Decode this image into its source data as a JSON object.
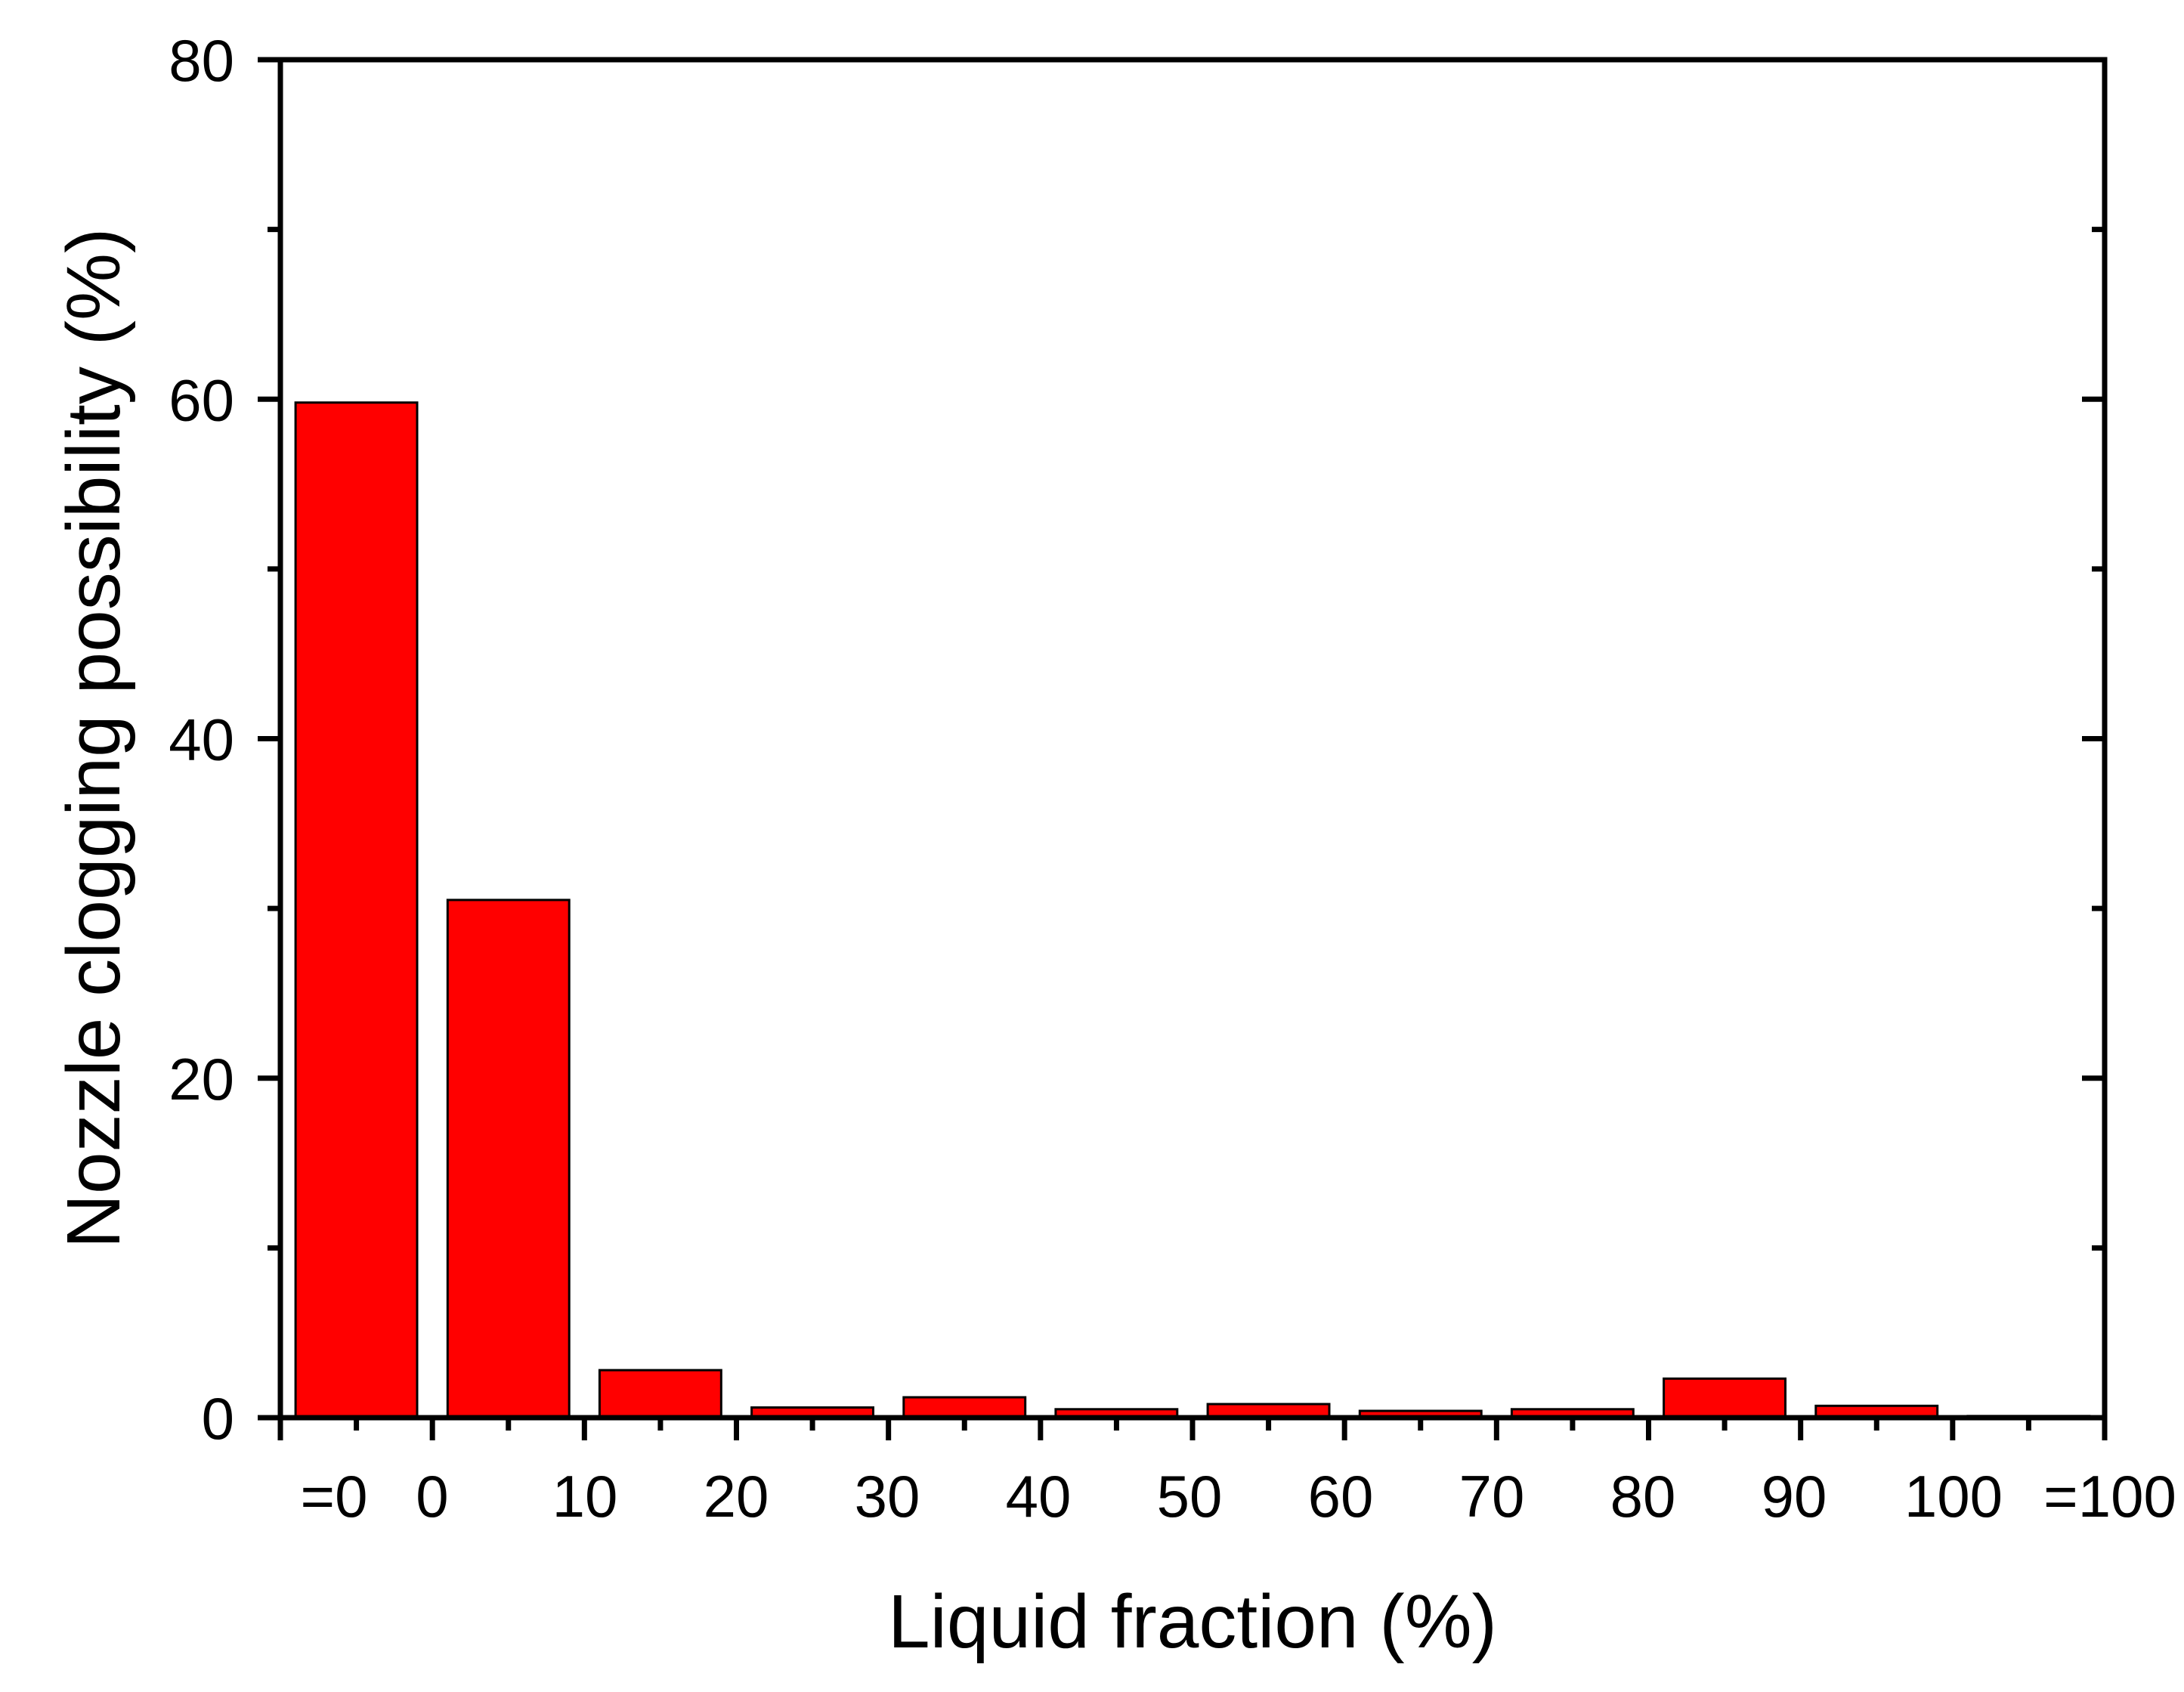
{
  "chart_data": {
    "type": "bar",
    "title": "",
    "xlabel": "Liquid fraction (%)",
    "ylabel": "Nozzle clogging possibility (%)",
    "ylim": [
      0,
      80
    ],
    "yticks": [
      "0",
      "20",
      "40",
      "60",
      "80"
    ],
    "xticks": [
      "=0",
      "0",
      "10",
      "20",
      "30",
      "40",
      "50",
      "60",
      "70",
      "80",
      "90",
      "100",
      "=100"
    ],
    "values": [
      59.8,
      30.5,
      2.8,
      0.6,
      1.2,
      0.5,
      0.8,
      0.4,
      0.5,
      2.3,
      0.7,
      0.1
    ],
    "bar_color": "#ff0000",
    "grid": false,
    "legend": "none"
  }
}
